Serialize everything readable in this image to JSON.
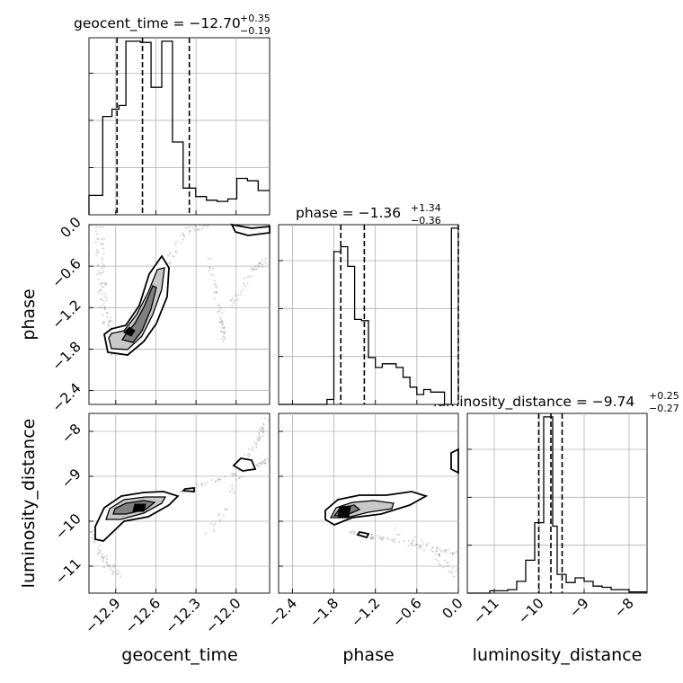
{
  "chart_data": {
    "type": "corner",
    "parameters": [
      {
        "name": "geocent_time",
        "range": [
          -13.1,
          -11.75
        ],
        "ticks": [
          -12.9,
          -12.6,
          -12.3,
          -12.0
        ],
        "tick_labels": [
          "−12.9",
          "−12.6",
          "−12.3",
          "−12.0"
        ]
      },
      {
        "name": "phase",
        "range": [
          -2.6,
          0.0
        ],
        "ticks": [
          -2.4,
          -1.8,
          -1.2,
          -0.6,
          0.0
        ],
        "tick_labels": [
          "−2.4",
          "−1.8",
          "−1.2",
          "−0.6",
          "0.0"
        ]
      },
      {
        "name": "luminosity_distance",
        "range": [
          -11.6,
          -7.6
        ],
        "ticks": [
          -11,
          -10,
          -9,
          -8
        ],
        "tick_labels": [
          "−11",
          "−10",
          "−9",
          "−8"
        ]
      }
    ],
    "axis_labels": {
      "bottom": [
        "geocent_time",
        "phase",
        "luminosity_distance"
      ],
      "left": [
        "phase",
        "luminosity_distance"
      ]
    },
    "titles": [
      {
        "param": "geocent_time",
        "main": "geocent_time = −12.70",
        "sup": "+0.35",
        "sub": "−0.19"
      },
      {
        "param": "phase",
        "main": "phase = −1.36",
        "sup": "+1.34",
        "sub": "−0.36"
      },
      {
        "param": "luminosity_distance",
        "main": "luminosity_distance = −9.74",
        "sup": "+0.25",
        "sub": "−0.27"
      }
    ],
    "histograms": [
      {
        "param": "geocent_time",
        "bin_edges": [
          -13.1,
          -12.997,
          -12.928,
          -12.876,
          -12.824,
          -12.716,
          -12.636,
          -12.556,
          -12.476,
          -12.396,
          -12.302,
          -12.222,
          -12.142,
          -12.062,
          -11.995,
          -11.915,
          -11.835,
          -11.75
        ],
        "counts": [
          16,
          81,
          87,
          90,
          143,
          142,
          105,
          143,
          60,
          22,
          15,
          12,
          11,
          13,
          30,
          28,
          20
        ],
        "quantile_lines": [
          -12.89,
          -12.7,
          -12.35
        ]
      },
      {
        "param": "phase",
        "bin_edges": [
          -2.6,
          -2.5,
          -2.4,
          -2.3,
          -2.2,
          -2.1,
          -2.0,
          -1.9,
          -1.8,
          -1.7,
          -1.6,
          -1.5,
          -1.4,
          -1.3,
          -1.2,
          -1.1,
          -1.0,
          -0.9,
          -0.8,
          -0.7,
          -0.6,
          -0.5,
          -0.4,
          -0.3,
          -0.2,
          -0.1,
          0.0
        ],
        "counts": [
          0,
          0,
          0,
          0,
          0,
          0,
          0,
          4,
          124,
          128,
          112,
          69,
          68,
          38,
          30,
          33,
          33,
          30,
          22,
          14,
          8,
          12,
          10,
          10,
          0,
          143
        ],
        "quantile_lines": [
          -1.7,
          -1.36,
          0.0
        ]
      },
      {
        "param": "luminosity_distance",
        "bin_edges": [
          -11.6,
          -11.1,
          -10.9,
          -10.7,
          -10.5,
          -10.3,
          -10.1,
          -9.9,
          -9.7,
          -9.6,
          -9.4,
          -9.2,
          -9.0,
          -8.8,
          -8.6,
          -8.4,
          -8.2,
          -8.0,
          -7.6
        ],
        "counts": [
          0,
          2,
          2,
          3,
          10,
          28,
          60,
          150,
          57,
          16,
          9,
          13,
          10,
          6,
          5,
          3,
          3,
          1
        ],
        "quantile_lines": [
          -10.01,
          -9.74,
          -9.49
        ]
      }
    ],
    "pairs": [
      {
        "x": "geocent_time",
        "y": "phase",
        "levels": 4
      },
      {
        "x": "geocent_time",
        "y": "luminosity_distance",
        "levels": 4
      },
      {
        "x": "phase",
        "y": "luminosity_distance",
        "levels": 4
      }
    ],
    "grid": true
  }
}
